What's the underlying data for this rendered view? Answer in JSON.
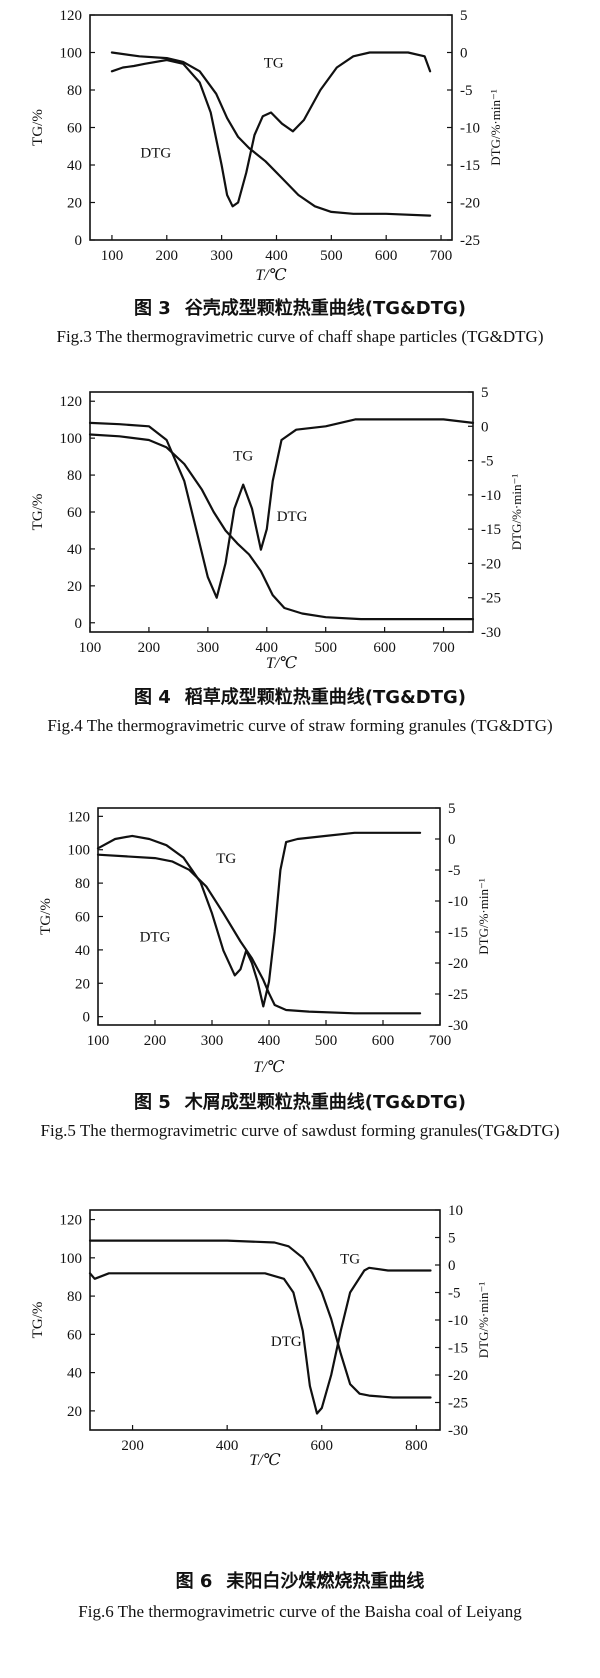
{
  "figures": [
    {
      "caption_cn_num": "图 3",
      "caption_cn": "谷壳成型颗粒热重曲线(TG&DTG)",
      "caption_en": "Fig.3 The thermogravimetric curve of chaff shape particles (TG&DTG)",
      "chart_data": {
        "type": "line",
        "xlabel": "T/℃",
        "ylabel": "TG/%",
        "y2label": "DTG/%·min⁻¹",
        "xlim": [
          60,
          720
        ],
        "ylim": [
          0,
          120
        ],
        "y2lim": [
          -25,
          5
        ],
        "xticks": [
          100,
          200,
          300,
          400,
          500,
          600,
          700
        ],
        "yticks": [
          0,
          20,
          40,
          60,
          80,
          100,
          120
        ],
        "y2ticks": [
          5,
          0,
          -5,
          -10,
          -15,
          -20,
          -25
        ],
        "annotations": [
          {
            "text": "TG",
            "x": 395,
            "y": 92
          },
          {
            "text": "DTG",
            "x": 180,
            "y": 44
          }
        ],
        "series": [
          {
            "name": "TG",
            "axis": "left",
            "x": [
              100,
              150,
              200,
              230,
              260,
              290,
              310,
              330,
              350,
              380,
              410,
              440,
              470,
              500,
              540,
              600,
              680
            ],
            "y": [
              100,
              98,
              97,
              95,
              90,
              78,
              65,
              55,
              49,
              42,
              33,
              24,
              18,
              15,
              14,
              14,
              13
            ]
          },
          {
            "name": "DTG",
            "axis": "right",
            "x": [
              100,
              120,
              140,
              160,
              200,
              230,
              260,
              280,
              300,
              310,
              320,
              330,
              345,
              360,
              375,
              390,
              410,
              430,
              450,
              480,
              510,
              540,
              570,
              600,
              640,
              670,
              680
            ],
            "y": [
              -2.5,
              -2,
              -1.8,
              -1.5,
              -1,
              -1.5,
              -4,
              -8,
              -15,
              -19,
              -20.5,
              -20,
              -16,
              -11,
              -8.5,
              -8,
              -9.5,
              -10.5,
              -9,
              -5,
              -2,
              -0.5,
              0,
              0,
              0,
              -0.5,
              -2.5
            ]
          }
        ]
      }
    },
    {
      "caption_cn_num": "图 4",
      "caption_cn": "稻草成型颗粒热重曲线(TG&DTG)",
      "caption_en": "Fig.4 The thermogravimetric curve of straw forming granules (TG&DTG)",
      "chart_data": {
        "type": "line",
        "xlabel": "T/℃",
        "ylabel": "TG/%",
        "y2label": "DTG/%·min⁻¹",
        "xlim": [
          100,
          750
        ],
        "ylim": [
          -5,
          125
        ],
        "y2lim": [
          -30,
          5
        ],
        "xticks": [
          100,
          200,
          300,
          400,
          500,
          600,
          700
        ],
        "yticks": [
          0,
          20,
          40,
          60,
          80,
          100,
          120
        ],
        "y2ticks": [
          5,
          0,
          -5,
          -10,
          -15,
          -20,
          -25,
          -30
        ],
        "annotations": [
          {
            "text": "TG",
            "x": 360,
            "y": 88
          },
          {
            "text": "DTG",
            "x": 443,
            "y": 55
          }
        ],
        "series": [
          {
            "name": "TG",
            "axis": "left",
            "x": [
              100,
              150,
              200,
              230,
              260,
              290,
              310,
              330,
              350,
              370,
              390,
              410,
              430,
              460,
              500,
              560,
              650,
              750
            ],
            "y": [
              102,
              101,
              99,
              95,
              86,
              72,
              60,
              50,
              43,
              37,
              28,
              15,
              8,
              5,
              3,
              2,
              2,
              2
            ]
          },
          {
            "name": "DTG",
            "axis": "right",
            "x": [
              100,
              150,
              200,
              230,
              260,
              280,
              300,
              315,
              330,
              345,
              360,
              375,
              390,
              400,
              410,
              425,
              450,
              500,
              550,
              600,
              650,
              700,
              750
            ],
            "y": [
              0.5,
              0.3,
              0,
              -2,
              -8,
              -15,
              -22,
              -25,
              -20,
              -12,
              -8.5,
              -12,
              -18,
              -15,
              -8,
              -2,
              -0.5,
              0,
              1,
              1,
              1,
              1,
              0.5
            ]
          }
        ]
      }
    },
    {
      "caption_cn_num": "图 5",
      "caption_cn": "木屑成型颗粒热重曲线(TG&DTG)",
      "caption_en": "Fig.5 The thermogravimetric curve of sawdust forming granules(TG&DTG)",
      "chart_data": {
        "type": "line",
        "xlabel": "T/℃",
        "ylabel": "TG/%",
        "y2label": "DTG/%·min⁻¹",
        "xlim": [
          100,
          700
        ],
        "ylim": [
          -5,
          125
        ],
        "y2lim": [
          -30,
          5
        ],
        "xticks": [
          100,
          200,
          300,
          400,
          500,
          600,
          700
        ],
        "yticks": [
          0,
          20,
          40,
          60,
          80,
          100,
          120
        ],
        "y2ticks": [
          5,
          0,
          -5,
          -10,
          -15,
          -20,
          -25,
          -30
        ],
        "annotations": [
          {
            "text": "TG",
            "x": 325,
            "y": 92
          },
          {
            "text": "DTG",
            "x": 200,
            "y": 45
          }
        ],
        "series": [
          {
            "name": "TG",
            "axis": "left",
            "x": [
              100,
              150,
              200,
              230,
              260,
              290,
              320,
              350,
              370,
              390,
              400,
              410,
              430,
              470,
              550,
              600,
              665
            ],
            "y": [
              97,
              96,
              95,
              93,
              88,
              78,
              62,
              45,
              35,
              22,
              14,
              7,
              4,
              3,
              2,
              2,
              2
            ]
          },
          {
            "name": "DTG",
            "axis": "right",
            "x": [
              100,
              130,
              160,
              190,
              220,
              250,
              280,
              300,
              320,
              340,
              350,
              360,
              370,
              380,
              390,
              400,
              410,
              420,
              430,
              450,
              500,
              550,
              600,
              665
            ],
            "y": [
              -1.5,
              0,
              0.5,
              0,
              -1,
              -3,
              -7,
              -12,
              -18,
              -22,
              -21,
              -18,
              -20,
              -23,
              -27,
              -23,
              -15,
              -5,
              -0.5,
              0,
              0.5,
              1,
              1,
              1
            ]
          }
        ]
      }
    },
    {
      "caption_cn_num": "图 6",
      "caption_cn": "耒阳白沙煤燃烧热重曲线",
      "caption_en": "Fig.6 The thermogravimetric curve of the Baisha coal of Leiyang",
      "chart_data": {
        "type": "line",
        "xlabel": "T/℃",
        "ylabel": "TG/%",
        "y2label": "DTG/%·min⁻¹",
        "xlim": [
          110,
          850
        ],
        "ylim": [
          10,
          125
        ],
        "y2lim": [
          -30,
          10
        ],
        "xticks": [
          200,
          400,
          600,
          800
        ],
        "yticks": [
          20,
          40,
          60,
          80,
          100,
          120
        ],
        "y2ticks": [
          10,
          5,
          0,
          -5,
          -10,
          -15,
          -20,
          -25,
          -30
        ],
        "annotations": [
          {
            "text": "TG",
            "x": 660,
            "y": 97
          },
          {
            "text": "DTG",
            "x": 525,
            "y": 54
          }
        ],
        "series": [
          {
            "name": "TG",
            "axis": "left",
            "x": [
              110,
              200,
              300,
              400,
              500,
              530,
              560,
              580,
              600,
              620,
              640,
              660,
              680,
              700,
              750,
              800,
              830
            ],
            "y": [
              109,
              109,
              109,
              109,
              108,
              106,
              100,
              92,
              82,
              68,
              50,
              34,
              29,
              28,
              27,
              27,
              27
            ]
          },
          {
            "name": "DTG",
            "axis": "right",
            "x": [
              110,
              120,
              150,
              200,
              300,
              400,
              480,
              520,
              540,
              560,
              575,
              590,
              600,
              620,
              640,
              660,
              690,
              700,
              740,
              800,
              830
            ],
            "y": [
              -1.5,
              -2.5,
              -1.5,
              -1.5,
              -1.5,
              -1.5,
              -1.5,
              -2.5,
              -5,
              -12,
              -22,
              -27,
              -26,
              -20,
              -12,
              -5,
              -1,
              -0.5,
              -1,
              -1,
              -1
            ]
          }
        ]
      }
    }
  ]
}
